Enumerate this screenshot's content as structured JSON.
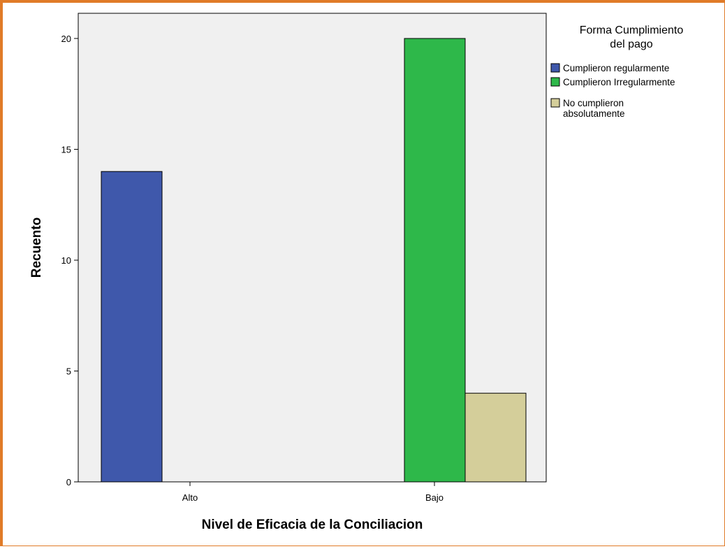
{
  "chart_data": {
    "type": "bar",
    "categories": [
      "Alto",
      "Bajo"
    ],
    "series": [
      {
        "name": "Cumplieron regularmente",
        "values": [
          14,
          0
        ],
        "color": "#3f58ab"
      },
      {
        "name": "Cumplieron Irregularmente",
        "values": [
          0,
          20
        ],
        "color": "#2eb84a"
      },
      {
        "name": "No cumplieron absolutamente",
        "values": [
          0,
          4
        ],
        "color": "#d4ce9a"
      }
    ],
    "xlabel": "Nivel de Eficacia de la Conciliacion",
    "ylabel": "Recuento",
    "ylim": [
      0,
      21
    ],
    "yticks": [
      0,
      5,
      10,
      15,
      20
    ],
    "legend": {
      "title_lines": [
        "Forma Cumplimiento",
        "del pago"
      ],
      "entries": [
        {
          "lines": [
            "Cumplieron regularmente"
          ]
        },
        {
          "lines": [
            "Cumplieron Irregularmente"
          ]
        },
        {
          "lines": [
            "No cumplieron",
            "absolutamente"
          ]
        }
      ],
      "position": "right"
    },
    "plot_background": "#f0f0f0",
    "grid": false
  }
}
